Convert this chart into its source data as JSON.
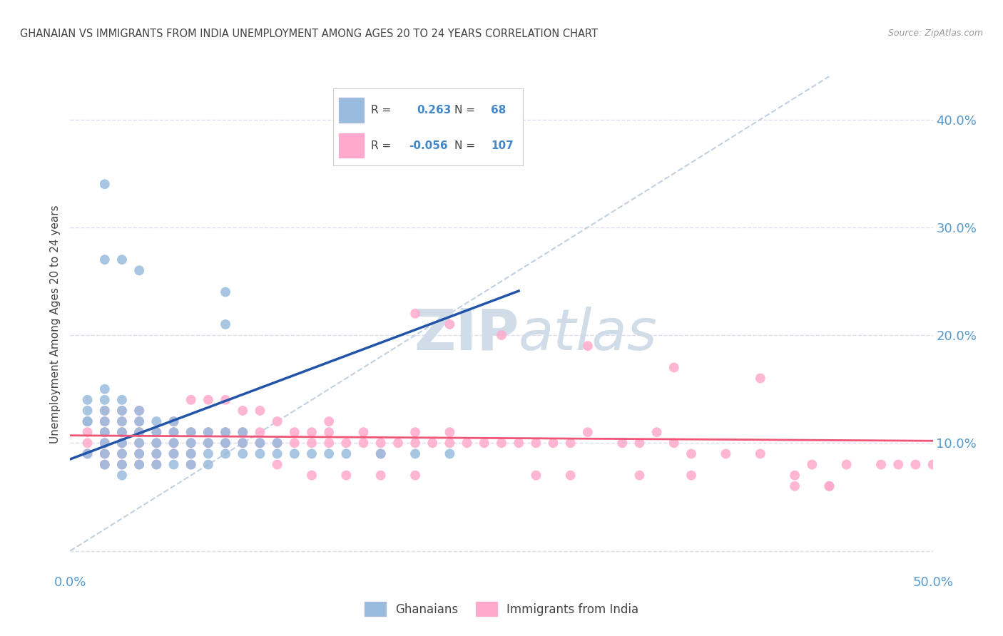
{
  "title": "GHANAIAN VS IMMIGRANTS FROM INDIA UNEMPLOYMENT AMONG AGES 20 TO 24 YEARS CORRELATION CHART",
  "source": "Source: ZipAtlas.com",
  "ylabel": "Unemployment Among Ages 20 to 24 years",
  "xlim": [
    0.0,
    0.5
  ],
  "ylim": [
    -0.02,
    0.44
  ],
  "legend_r_blue": "0.263",
  "legend_n_blue": "68",
  "legend_r_pink": "-0.056",
  "legend_n_pink": "107",
  "blue_color": "#99BBDD",
  "pink_color": "#FFAACC",
  "blue_line_color": "#2255AA",
  "pink_line_color": "#EE5577",
  "diag_line_color": "#BBCCDD",
  "background_color": "#FFFFFF",
  "grid_color": "#DDDDEE",
  "watermark_color": "#D0DCE8",
  "blue_scatter_x": [
    0.01,
    0.01,
    0.01,
    0.01,
    0.01,
    0.02,
    0.02,
    0.02,
    0.02,
    0.02,
    0.02,
    0.02,
    0.02,
    0.03,
    0.03,
    0.03,
    0.03,
    0.03,
    0.03,
    0.03,
    0.03,
    0.04,
    0.04,
    0.04,
    0.04,
    0.04,
    0.04,
    0.05,
    0.05,
    0.05,
    0.05,
    0.05,
    0.06,
    0.06,
    0.06,
    0.06,
    0.06,
    0.07,
    0.07,
    0.07,
    0.07,
    0.08,
    0.08,
    0.08,
    0.08,
    0.09,
    0.09,
    0.09,
    0.1,
    0.1,
    0.1,
    0.11,
    0.11,
    0.12,
    0.12,
    0.13,
    0.14,
    0.15,
    0.16,
    0.18,
    0.2,
    0.22,
    0.02,
    0.02,
    0.03,
    0.04,
    0.09,
    0.09
  ],
  "blue_scatter_y": [
    0.12,
    0.12,
    0.13,
    0.14,
    0.09,
    0.1,
    0.11,
    0.12,
    0.13,
    0.14,
    0.15,
    0.09,
    0.08,
    0.1,
    0.11,
    0.12,
    0.13,
    0.14,
    0.09,
    0.08,
    0.07,
    0.1,
    0.11,
    0.12,
    0.13,
    0.09,
    0.08,
    0.1,
    0.11,
    0.12,
    0.09,
    0.08,
    0.1,
    0.11,
    0.12,
    0.09,
    0.08,
    0.1,
    0.11,
    0.09,
    0.08,
    0.1,
    0.11,
    0.09,
    0.08,
    0.1,
    0.11,
    0.09,
    0.1,
    0.11,
    0.09,
    0.1,
    0.09,
    0.1,
    0.09,
    0.09,
    0.09,
    0.09,
    0.09,
    0.09,
    0.09,
    0.09,
    0.34,
    0.27,
    0.27,
    0.26,
    0.24,
    0.21
  ],
  "pink_scatter_x": [
    0.01,
    0.01,
    0.01,
    0.01,
    0.02,
    0.02,
    0.02,
    0.02,
    0.02,
    0.02,
    0.03,
    0.03,
    0.03,
    0.03,
    0.03,
    0.03,
    0.04,
    0.04,
    0.04,
    0.04,
    0.04,
    0.04,
    0.05,
    0.05,
    0.05,
    0.05,
    0.06,
    0.06,
    0.06,
    0.06,
    0.07,
    0.07,
    0.07,
    0.07,
    0.07,
    0.08,
    0.08,
    0.08,
    0.09,
    0.09,
    0.09,
    0.1,
    0.1,
    0.1,
    0.11,
    0.11,
    0.11,
    0.12,
    0.12,
    0.13,
    0.13,
    0.14,
    0.14,
    0.15,
    0.15,
    0.15,
    0.16,
    0.17,
    0.17,
    0.18,
    0.18,
    0.19,
    0.2,
    0.2,
    0.21,
    0.22,
    0.22,
    0.23,
    0.24,
    0.25,
    0.26,
    0.27,
    0.28,
    0.29,
    0.3,
    0.32,
    0.33,
    0.34,
    0.35,
    0.36,
    0.38,
    0.4,
    0.42,
    0.43,
    0.44,
    0.45,
    0.47,
    0.48,
    0.49,
    0.5,
    0.2,
    0.22,
    0.25,
    0.3,
    0.35,
    0.4,
    0.42,
    0.44,
    0.36,
    0.33,
    0.29,
    0.27,
    0.2,
    0.18,
    0.16,
    0.14,
    0.12
  ],
  "pink_scatter_y": [
    0.1,
    0.11,
    0.12,
    0.09,
    0.1,
    0.11,
    0.12,
    0.13,
    0.09,
    0.08,
    0.11,
    0.12,
    0.13,
    0.09,
    0.08,
    0.1,
    0.11,
    0.12,
    0.09,
    0.08,
    0.1,
    0.13,
    0.1,
    0.11,
    0.09,
    0.08,
    0.1,
    0.11,
    0.12,
    0.09,
    0.1,
    0.11,
    0.09,
    0.08,
    0.14,
    0.1,
    0.11,
    0.14,
    0.1,
    0.11,
    0.14,
    0.1,
    0.11,
    0.13,
    0.1,
    0.11,
    0.13,
    0.1,
    0.12,
    0.1,
    0.11,
    0.1,
    0.11,
    0.1,
    0.11,
    0.12,
    0.1,
    0.1,
    0.11,
    0.1,
    0.09,
    0.1,
    0.1,
    0.11,
    0.1,
    0.1,
    0.11,
    0.1,
    0.1,
    0.1,
    0.1,
    0.1,
    0.1,
    0.1,
    0.11,
    0.1,
    0.1,
    0.11,
    0.1,
    0.09,
    0.09,
    0.09,
    0.06,
    0.08,
    0.06,
    0.08,
    0.08,
    0.08,
    0.08,
    0.08,
    0.22,
    0.21,
    0.2,
    0.19,
    0.17,
    0.16,
    0.07,
    0.06,
    0.07,
    0.07,
    0.07,
    0.07,
    0.07,
    0.07,
    0.07,
    0.07,
    0.08
  ],
  "blue_line_x": [
    0.0,
    0.26
  ],
  "blue_line_y_start": 0.085,
  "blue_line_slope": 0.6,
  "pink_line_x": [
    0.0,
    0.5
  ],
  "pink_line_y_start": 0.107,
  "pink_line_slope": -0.01
}
